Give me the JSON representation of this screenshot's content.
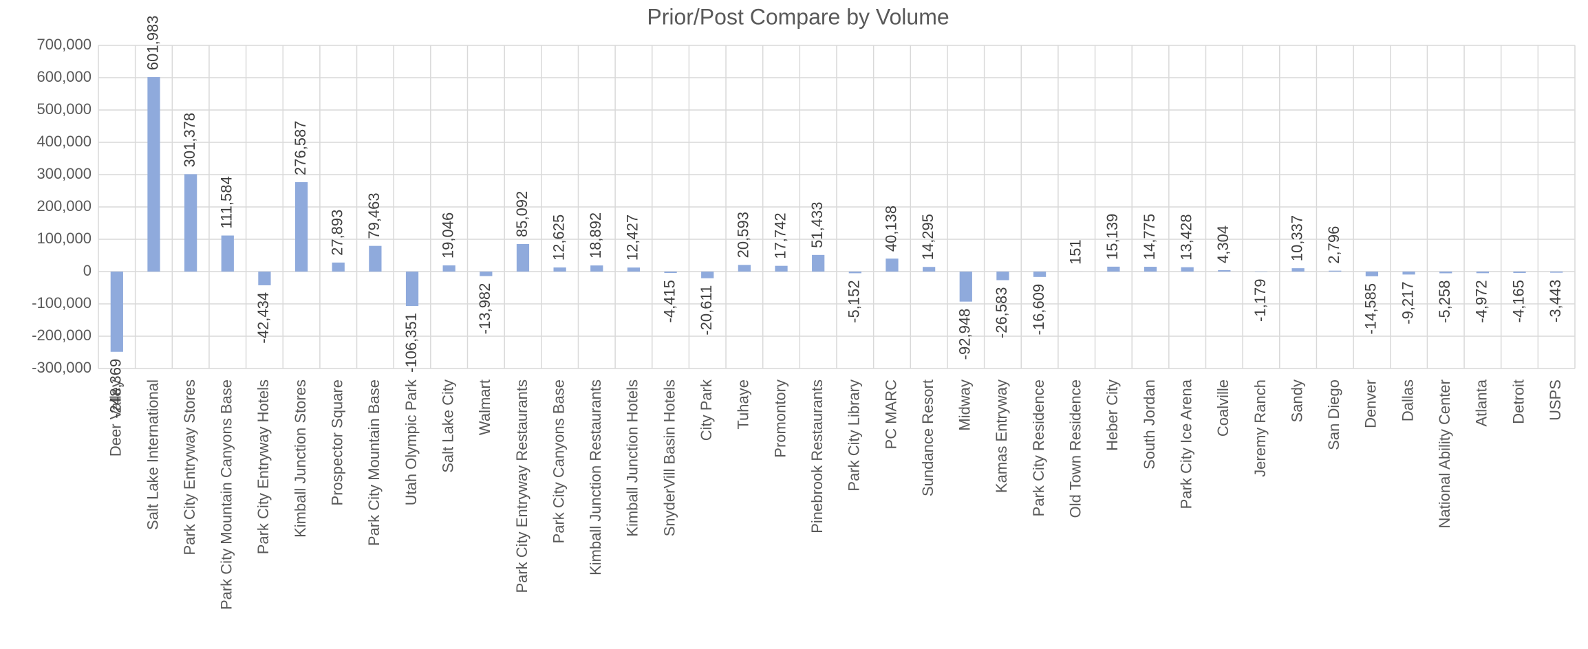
{
  "chart_data": {
    "type": "bar",
    "title": "Prior/Post Compare by Volume",
    "categories": [
      "Deer Valley",
      "Salt Lake International",
      "Park City Entryway Stores",
      "Park City Mountain Canyons Base",
      "Park City Entryway Hotels",
      "Kimball Junction Stores",
      "Prospector Square",
      "Park City Mountain Base",
      "Utah Olympic Park",
      "Salt Lake City",
      "Walmart",
      "Park City Entryway Restaurants",
      "Park City Canyons Base",
      "Kimball Junction Restaurants",
      "Kimball Junction Hotels",
      "SnyderVill Basin Hotels",
      "City Park",
      "Tuhaye",
      "Promontory",
      "Pinebrook Restaurants",
      "Park City Library",
      "PC MARC",
      "Sundance Resort",
      "Midway",
      "Kamas Entryway",
      "Park City Residence",
      "Old Town Residence",
      "Heber City",
      "South Jordan",
      "Park City Ice Arena",
      "Coalville",
      "Jeremy Ranch",
      "Sandy",
      "San Diego",
      "Denver",
      "Dallas",
      "National Ability Center",
      "Atlanta",
      "Detroit",
      "USPS"
    ],
    "values": [
      -248369,
      601983,
      301378,
      111584,
      -42434,
      276587,
      27893,
      79463,
      -106351,
      19046,
      -13982,
      85092,
      12625,
      18892,
      12427,
      -4415,
      -20611,
      20593,
      17742,
      51433,
      -5152,
      40138,
      14295,
      -92948,
      -26583,
      -16609,
      151,
      15139,
      14775,
      13428,
      4304,
      -1179,
      10337,
      2796,
      -14585,
      -9217,
      -5258,
      -4972,
      -4165,
      -3443
    ],
    "value_labels": [
      "-248,369",
      "601,983",
      "301,378",
      "111,584",
      "-42,434",
      "276,587",
      "27,893",
      "79,463",
      "-106,351",
      "19,046",
      "-13,982",
      "85,092",
      "12,625",
      "18,892",
      "12,427",
      "-4,415",
      "-20,611",
      "20,593",
      "17,742",
      "51,433",
      "-5,152",
      "40,138",
      "14,295",
      "-92,948",
      "-26,583",
      "-16,609",
      "151",
      "15,139",
      "14,775",
      "13,428",
      "4,304",
      "-1,179",
      "10,337",
      "2,796",
      "-14,585",
      "-9,217",
      "-5,258",
      "-4,972",
      "-4,165",
      "-3,443"
    ],
    "color": "#8faadc",
    "ylim": [
      -300000,
      700000
    ],
    "yticks": [
      {
        "value": -300000,
        "label": "-300,000"
      },
      {
        "value": -200000,
        "label": "-200,000"
      },
      {
        "value": -100000,
        "label": "-100,000"
      },
      0,
      {
        "value": 100000,
        "label": "100,000"
      },
      {
        "value": 200000,
        "label": "200,000"
      },
      {
        "value": 300000,
        "label": "300,000"
      },
      {
        "value": 400000,
        "label": "400,000"
      },
      {
        "value": 500000,
        "label": "500,000"
      },
      {
        "value": 600000,
        "label": "600,000"
      },
      {
        "value": 700000,
        "label": "700,000"
      }
    ],
    "grid": true
  }
}
